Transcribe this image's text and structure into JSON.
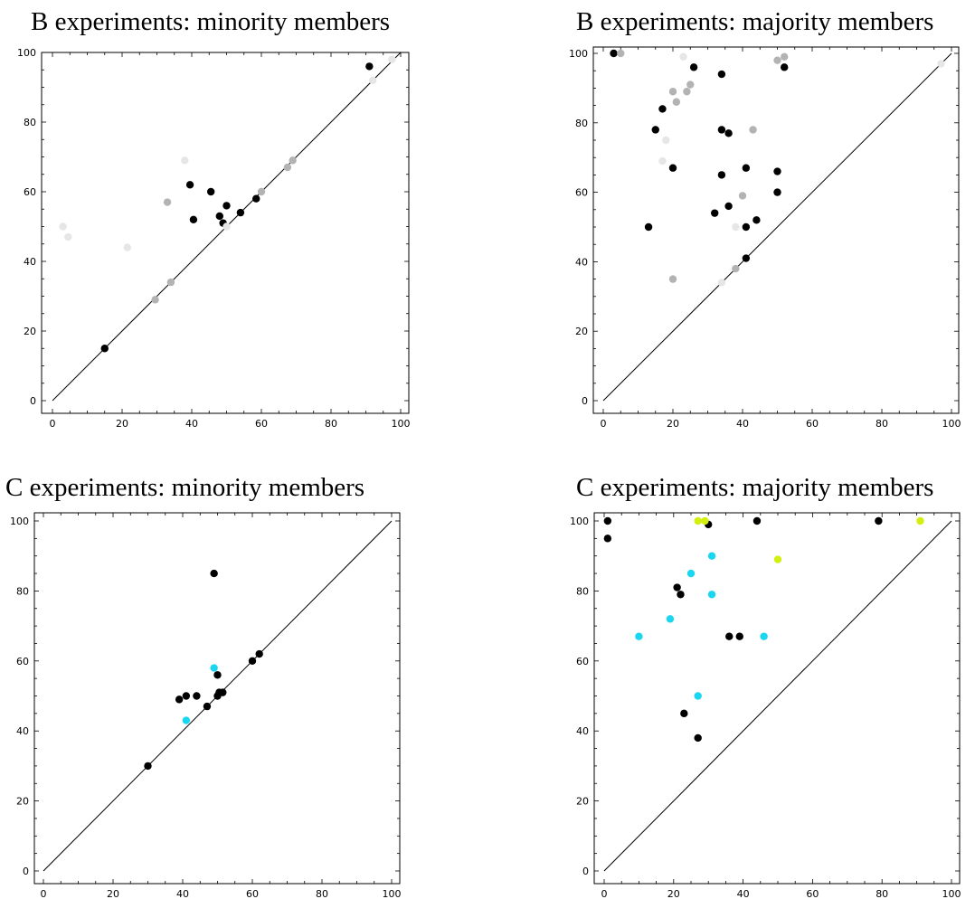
{
  "colors": {
    "black": "#000000",
    "light_gray": "#e6e6e6",
    "mid_gray": "#b3b3b3",
    "cyan": "#1ad6f0",
    "yellow_green": "#d2ef0f",
    "diagonal": "#000000"
  },
  "chart_data": [
    {
      "type": "scatter",
      "title": "B experiments: minority members",
      "xlabel": "",
      "ylabel": "",
      "xlim": [
        0,
        100
      ],
      "ylim": [
        0,
        100
      ],
      "xticks": [
        "0",
        "20",
        "40",
        "60",
        "80",
        "100"
      ],
      "yticks": [
        "0",
        "20",
        "40",
        "60",
        "80",
        "100"
      ],
      "grid": false,
      "reference_line": "y = x",
      "points": [
        {
          "x": 15,
          "y": 15,
          "color": "black"
        },
        {
          "x": 39.5,
          "y": 62,
          "color": "black"
        },
        {
          "x": 40.5,
          "y": 52,
          "color": "black"
        },
        {
          "x": 45.5,
          "y": 60,
          "color": "black"
        },
        {
          "x": 48,
          "y": 53,
          "color": "black"
        },
        {
          "x": 49,
          "y": 51,
          "color": "black"
        },
        {
          "x": 50,
          "y": 56,
          "color": "black"
        },
        {
          "x": 54,
          "y": 54,
          "color": "black"
        },
        {
          "x": 58.5,
          "y": 58,
          "color": "black"
        },
        {
          "x": 91,
          "y": 96,
          "color": "black"
        },
        {
          "x": 29.5,
          "y": 29,
          "color": "mid_gray"
        },
        {
          "x": 33,
          "y": 57,
          "color": "mid_gray"
        },
        {
          "x": 34,
          "y": 34,
          "color": "mid_gray"
        },
        {
          "x": 60,
          "y": 60,
          "color": "mid_gray"
        },
        {
          "x": 67.5,
          "y": 67,
          "color": "mid_gray"
        },
        {
          "x": 69,
          "y": 69,
          "color": "mid_gray"
        },
        {
          "x": 3,
          "y": 50,
          "color": "light_gray"
        },
        {
          "x": 4.5,
          "y": 47,
          "color": "light_gray"
        },
        {
          "x": 21.5,
          "y": 44,
          "color": "light_gray"
        },
        {
          "x": 38,
          "y": 69,
          "color": "light_gray"
        },
        {
          "x": 50,
          "y": 50,
          "color": "light_gray"
        },
        {
          "x": 92,
          "y": 92,
          "color": "light_gray"
        },
        {
          "x": 97.5,
          "y": 98,
          "color": "light_gray"
        }
      ]
    },
    {
      "type": "scatter",
      "title": "B experiments: majority members",
      "xlabel": "",
      "ylabel": "",
      "xlim": [
        0,
        100
      ],
      "ylim": [
        0,
        100
      ],
      "xticks": [
        "0",
        "20",
        "40",
        "60",
        "80",
        "100"
      ],
      "yticks": [
        "0",
        "20",
        "40",
        "60",
        "80",
        "100"
      ],
      "grid": false,
      "reference_line": "y = x",
      "points": [
        {
          "x": 3,
          "y": 100,
          "color": "black"
        },
        {
          "x": 26,
          "y": 96,
          "color": "black"
        },
        {
          "x": 34,
          "y": 94,
          "color": "black"
        },
        {
          "x": 17,
          "y": 84,
          "color": "black"
        },
        {
          "x": 15,
          "y": 78,
          "color": "black"
        },
        {
          "x": 34,
          "y": 78,
          "color": "black"
        },
        {
          "x": 36,
          "y": 77,
          "color": "black"
        },
        {
          "x": 20,
          "y": 67,
          "color": "black"
        },
        {
          "x": 34,
          "y": 65,
          "color": "black"
        },
        {
          "x": 41,
          "y": 67,
          "color": "black"
        },
        {
          "x": 50,
          "y": 66,
          "color": "black"
        },
        {
          "x": 50,
          "y": 60,
          "color": "black"
        },
        {
          "x": 52,
          "y": 96,
          "color": "black"
        },
        {
          "x": 13,
          "y": 50,
          "color": "black"
        },
        {
          "x": 32,
          "y": 54,
          "color": "black"
        },
        {
          "x": 36,
          "y": 56,
          "color": "black"
        },
        {
          "x": 41,
          "y": 50,
          "color": "black"
        },
        {
          "x": 44,
          "y": 52,
          "color": "black"
        },
        {
          "x": 41,
          "y": 41,
          "color": "black"
        },
        {
          "x": 5,
          "y": 100,
          "color": "mid_gray"
        },
        {
          "x": 25,
          "y": 91,
          "color": "mid_gray"
        },
        {
          "x": 20,
          "y": 89,
          "color": "mid_gray"
        },
        {
          "x": 24,
          "y": 89,
          "color": "mid_gray"
        },
        {
          "x": 21,
          "y": 86,
          "color": "mid_gray"
        },
        {
          "x": 43,
          "y": 78,
          "color": "mid_gray"
        },
        {
          "x": 40,
          "y": 59,
          "color": "mid_gray"
        },
        {
          "x": 50,
          "y": 98,
          "color": "mid_gray"
        },
        {
          "x": 52,
          "y": 99,
          "color": "mid_gray"
        },
        {
          "x": 38,
          "y": 38,
          "color": "mid_gray"
        },
        {
          "x": 20,
          "y": 35,
          "color": "mid_gray"
        },
        {
          "x": 23,
          "y": 99,
          "color": "light_gray"
        },
        {
          "x": 18,
          "y": 75,
          "color": "light_gray"
        },
        {
          "x": 17,
          "y": 69,
          "color": "light_gray"
        },
        {
          "x": 38,
          "y": 50,
          "color": "light_gray"
        },
        {
          "x": 34,
          "y": 34,
          "color": "light_gray"
        },
        {
          "x": 97,
          "y": 97,
          "color": "light_gray"
        }
      ]
    },
    {
      "type": "scatter",
      "title": "C experiments: minority members",
      "xlabel": "",
      "ylabel": "",
      "xlim": [
        0,
        100
      ],
      "ylim": [
        0,
        100
      ],
      "xticks": [
        "0",
        "20",
        "40",
        "60",
        "80",
        "100"
      ],
      "yticks": [
        "0",
        "20",
        "40",
        "60",
        "80",
        "100"
      ],
      "grid": false,
      "reference_line": "y = x",
      "points": [
        {
          "x": 49,
          "y": 85,
          "color": "black"
        },
        {
          "x": 30,
          "y": 30,
          "color": "black"
        },
        {
          "x": 39,
          "y": 49,
          "color": "black"
        },
        {
          "x": 41,
          "y": 50,
          "color": "black"
        },
        {
          "x": 44,
          "y": 50,
          "color": "black"
        },
        {
          "x": 47,
          "y": 47,
          "color": "black"
        },
        {
          "x": 50,
          "y": 56,
          "color": "black"
        },
        {
          "x": 50,
          "y": 50,
          "color": "black"
        },
        {
          "x": 50.5,
          "y": 51,
          "color": "black"
        },
        {
          "x": 51.5,
          "y": 51,
          "color": "black"
        },
        {
          "x": 60,
          "y": 60,
          "color": "black"
        },
        {
          "x": 62,
          "y": 62,
          "color": "black"
        },
        {
          "x": 49,
          "y": 58,
          "color": "cyan"
        },
        {
          "x": 41,
          "y": 43,
          "color": "cyan"
        }
      ]
    },
    {
      "type": "scatter",
      "title": "C experiments: majority members",
      "xlabel": "",
      "ylabel": "",
      "xlim": [
        0,
        100
      ],
      "ylim": [
        0,
        100
      ],
      "xticks": [
        "0",
        "20",
        "40",
        "60",
        "80",
        "100"
      ],
      "yticks": [
        "0",
        "20",
        "40",
        "60",
        "80",
        "100"
      ],
      "grid": false,
      "reference_line": "y = x",
      "points": [
        {
          "x": 1,
          "y": 100,
          "color": "black"
        },
        {
          "x": 1,
          "y": 95,
          "color": "black"
        },
        {
          "x": 30,
          "y": 99,
          "color": "black"
        },
        {
          "x": 44,
          "y": 100,
          "color": "black"
        },
        {
          "x": 79,
          "y": 100,
          "color": "black"
        },
        {
          "x": 21,
          "y": 81,
          "color": "black"
        },
        {
          "x": 22,
          "y": 79,
          "color": "black"
        },
        {
          "x": 36,
          "y": 67,
          "color": "black"
        },
        {
          "x": 39,
          "y": 67,
          "color": "black"
        },
        {
          "x": 23,
          "y": 45,
          "color": "black"
        },
        {
          "x": 27,
          "y": 38,
          "color": "black"
        },
        {
          "x": 27,
          "y": 100,
          "color": "yellow_green"
        },
        {
          "x": 29,
          "y": 100,
          "color": "yellow_green"
        },
        {
          "x": 50,
          "y": 89,
          "color": "yellow_green"
        },
        {
          "x": 91,
          "y": 100,
          "color": "yellow_green"
        },
        {
          "x": 31,
          "y": 90,
          "color": "cyan"
        },
        {
          "x": 25,
          "y": 85,
          "color": "cyan"
        },
        {
          "x": 31,
          "y": 79,
          "color": "cyan"
        },
        {
          "x": 19,
          "y": 72,
          "color": "cyan"
        },
        {
          "x": 10,
          "y": 67,
          "color": "cyan"
        },
        {
          "x": 46,
          "y": 67,
          "color": "cyan"
        },
        {
          "x": 27,
          "y": 50,
          "color": "cyan"
        }
      ]
    }
  ]
}
